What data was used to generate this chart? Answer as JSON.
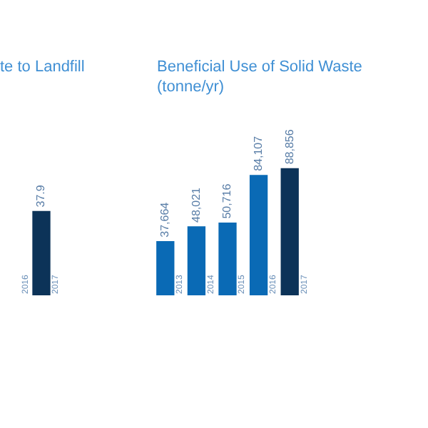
{
  "chart_data": [
    {
      "type": "bar",
      "title": "te to Landfill",
      "categories": [
        "2017"
      ],
      "values": [
        37.9
      ],
      "colors": [
        "#0c3358"
      ],
      "value_labels": [
        "37.9"
      ],
      "annotations": [
        "2016"
      ]
    },
    {
      "type": "bar",
      "title": "Beneficial Use of Solid Waste (tonne/yr)",
      "categories": [
        "2013",
        "2014",
        "2015",
        "2016",
        "2017"
      ],
      "values": [
        37664,
        48021,
        50716,
        84107,
        88856
      ],
      "colors": [
        "#0a6ab5",
        "#0a6ab5",
        "#0a6ab5",
        "#0a6ab5",
        "#0c3358"
      ],
      "value_labels": [
        "37,664",
        "48,021",
        "50,716",
        "84,107",
        "88,856"
      ]
    }
  ]
}
